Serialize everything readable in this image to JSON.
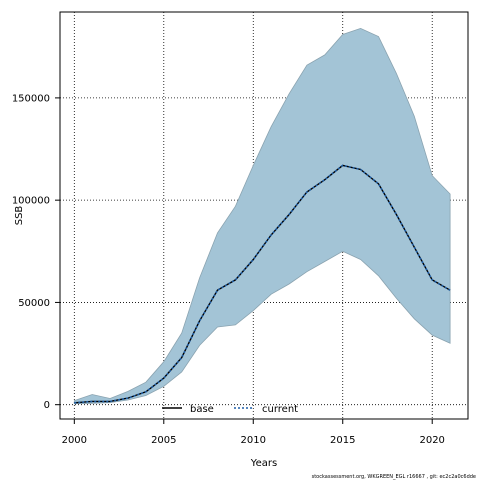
{
  "chart_data": {
    "type": "area",
    "xlabel": "Years",
    "ylabel": "SSB",
    "xlim": [
      1999.2,
      2022
    ],
    "ylim": [
      -7000,
      192000
    ],
    "x_ticks": [
      2000,
      2005,
      2010,
      2015,
      2020
    ],
    "y_ticks": [
      0,
      50000,
      100000,
      150000
    ],
    "y_tick_labels": [
      "0",
      "50000",
      "100000",
      "150000"
    ],
    "grid": true,
    "legend_position": "bottom-center",
    "years": [
      2000,
      2001,
      2002,
      2003,
      2004,
      2005,
      2006,
      2007,
      2008,
      2009,
      2010,
      2011,
      2012,
      2013,
      2014,
      2015,
      2016,
      2017,
      2018,
      2019,
      2020,
      2021
    ],
    "band": {
      "color": "#a3c4d6",
      "upper": [
        2000,
        5000,
        3000,
        6500,
        11000,
        21000,
        35000,
        62000,
        84000,
        97000,
        117000,
        136000,
        152000,
        166000,
        171000,
        181000,
        184000,
        180000,
        162000,
        141000,
        112000,
        103000
      ],
      "lower": [
        500,
        700,
        1000,
        2300,
        4500,
        9000,
        16000,
        29000,
        38000,
        39000,
        46000,
        54000,
        59000,
        65000,
        70000,
        75000,
        71000,
        63000,
        52000,
        42000,
        34000,
        30000
      ]
    },
    "series": [
      {
        "name": "base",
        "style": "solid",
        "color": "#000000",
        "values": [
          900,
          1600,
          1600,
          3200,
          6300,
          13000,
          23000,
          41000,
          56000,
          61000,
          71000,
          83000,
          93000,
          104000,
          110000,
          117000,
          115000,
          108000,
          93000,
          77000,
          61000,
          56000
        ]
      },
      {
        "name": "current",
        "style": "dotted",
        "color": "#1f5fa8",
        "values": [
          900,
          1600,
          1600,
          3200,
          6300,
          13000,
          23000,
          41000,
          56000,
          61000,
          71000,
          83000,
          93000,
          104000,
          110000,
          117000,
          115000,
          108000,
          93000,
          77000,
          61000,
          56000
        ]
      }
    ],
    "footer": "stockassessment.org, WKGREEN_EGL r16667 , git: ec2c2a0c6dde"
  }
}
